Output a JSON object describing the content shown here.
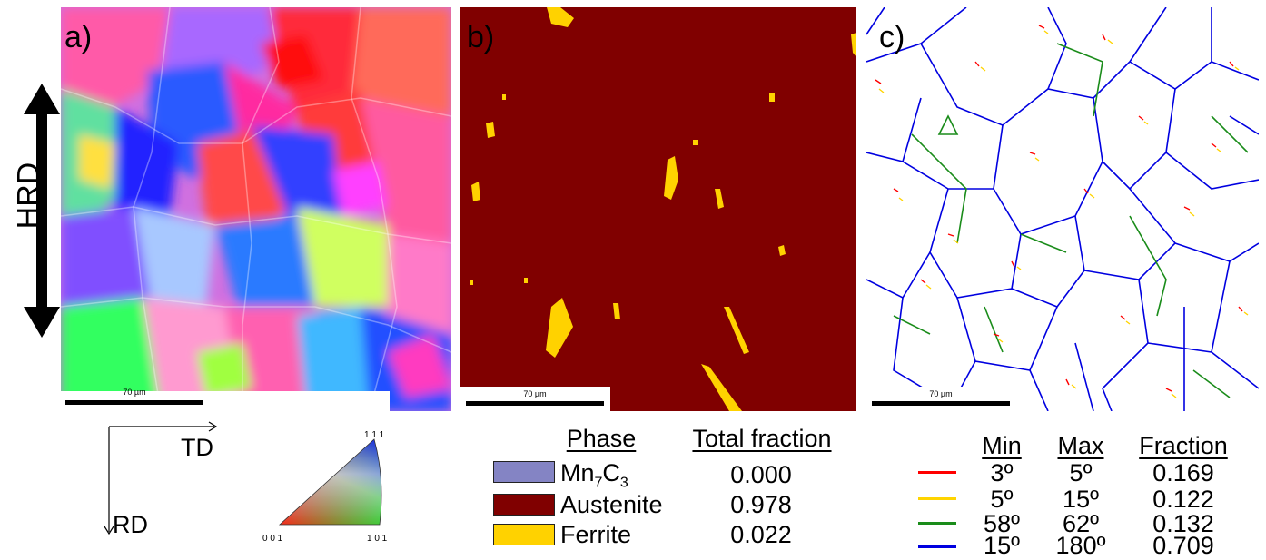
{
  "panels": {
    "a": {
      "label": "a)",
      "scalebar": "70 µm"
    },
    "b": {
      "label": "b)",
      "scalebar": "70 µm"
    },
    "c": {
      "label": "c)",
      "scalebar": "70 µm"
    }
  },
  "axis": {
    "hrd": "HRD",
    "td": "TD",
    "rd": "RD"
  },
  "ipf_triangle": {
    "top": "1 1 1",
    "left": "0 0 1",
    "right": "1 0 1"
  },
  "phase_table": {
    "header_phase": "Phase",
    "header_fraction": "Total fraction",
    "rows": [
      {
        "name_main": "Mn",
        "sub1": "7",
        "mid": "C",
        "sub2": "3",
        "fraction": "0.000",
        "color": "#8484c4"
      },
      {
        "name": "Austenite",
        "fraction": "0.978",
        "color": "#800000"
      },
      {
        "name": "Ferrite",
        "fraction": "0.022",
        "color": "#ffd200"
      }
    ]
  },
  "boundary_table": {
    "header_min": "Min",
    "header_max": "Max",
    "header_fraction": "Fraction",
    "rows": [
      {
        "min": "3º",
        "max": "5º",
        "fraction": "0.169",
        "color": "#ff0000"
      },
      {
        "min": "5º",
        "max": "15º",
        "fraction": "0.122",
        "color": "#ffd400"
      },
      {
        "min": "58º",
        "max": "62º",
        "fraction": "0.132",
        "color": "#1a8c1a"
      },
      {
        "min": "15º",
        "max": "180º",
        "fraction": "0.709",
        "color": "#0000e0"
      }
    ]
  }
}
